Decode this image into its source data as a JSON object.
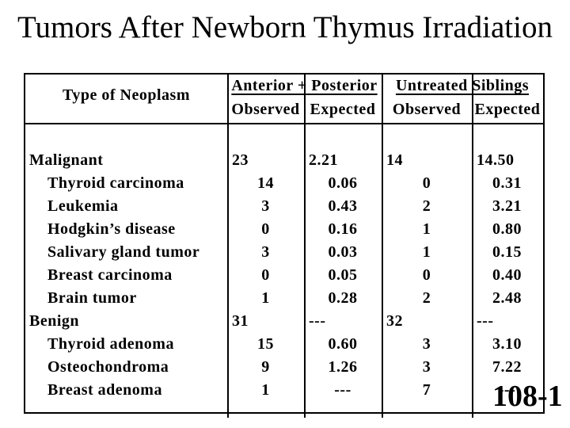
{
  "slide": {
    "title": "Tumors After Newborn Thymus Irradiation",
    "slide_number": "108-1"
  },
  "colors": {
    "background": "#ffffff",
    "text": "#000000",
    "table_border": "#000000"
  },
  "table": {
    "header": {
      "col1": "Type of Neoplasm",
      "group1": "Anterior + Posterior",
      "group2": "Untreated Siblings",
      "sub": [
        "Observed",
        "Expected",
        "Observed",
        "Expected"
      ]
    },
    "rows": [
      {
        "label": "Malignant",
        "indent": false,
        "align": "left",
        "values": [
          "23",
          "2.21",
          "14",
          "14.50"
        ]
      },
      {
        "label": "Thyroid carcinoma",
        "indent": true,
        "align": "center",
        "values": [
          "14",
          "0.06",
          "0",
          "0.31"
        ]
      },
      {
        "label": "Leukemia",
        "indent": true,
        "align": "center",
        "values": [
          "3",
          "0.43",
          "2",
          "3.21"
        ]
      },
      {
        "label": "Hodgkin’s disease",
        "indent": true,
        "align": "center",
        "values": [
          "0",
          "0.16",
          "1",
          "0.80"
        ]
      },
      {
        "label": "Salivary gland tumor",
        "indent": true,
        "align": "center",
        "values": [
          "3",
          "0.03",
          "1",
          "0.15"
        ]
      },
      {
        "label": "Breast carcinoma",
        "indent": true,
        "align": "center",
        "values": [
          "0",
          "0.05",
          "0",
          "0.40"
        ]
      },
      {
        "label": "Brain tumor",
        "indent": true,
        "align": "center",
        "values": [
          "1",
          "0.28",
          "2",
          "2.48"
        ]
      },
      {
        "label": "Benign",
        "indent": false,
        "align": "left",
        "values": [
          "31",
          "---",
          "32",
          "---"
        ]
      },
      {
        "label": "Thyroid adenoma",
        "indent": true,
        "align": "center",
        "values": [
          "15",
          "0.60",
          "3",
          "3.10"
        ]
      },
      {
        "label": "Osteochondroma",
        "indent": true,
        "align": "center",
        "values": [
          "9",
          "1.26",
          "3",
          "7.22"
        ]
      },
      {
        "label": "Breast adenoma",
        "indent": true,
        "align": "center",
        "values": [
          "1",
          "---",
          "7",
          "---"
        ]
      }
    ]
  }
}
